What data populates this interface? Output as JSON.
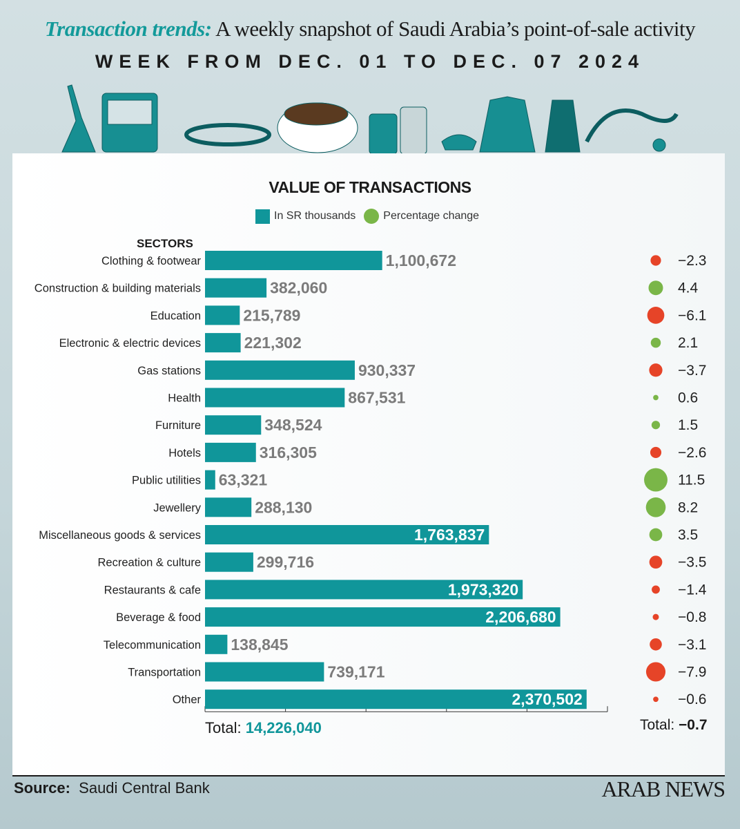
{
  "header": {
    "title_highlight": "Transaction trends:",
    "title_rest": " A weekly snapshot of Saudi Arabia’s point-of-sale activity",
    "subtitle": "WEEK FROM DEC. 01 TO DEC. 07 2024"
  },
  "colors": {
    "bar": "#10969a",
    "positive": "#7ab648",
    "negative": "#e64428"
  },
  "chart_data": {
    "type": "bar",
    "title": "VALUE OF TRANSACTIONS",
    "legend": [
      "In SR thousands",
      "Percentage change"
    ],
    "ylabel": "SECTORS",
    "xlim": [
      0,
      2500000
    ],
    "x_ticks": [
      0,
      500000,
      1000000,
      1500000,
      2000000,
      2500000
    ],
    "categories": [
      "Clothing & footwear",
      "Construction & building materials",
      "Education",
      "Electronic & electric devices",
      "Gas stations",
      "Health",
      "Furniture",
      "Hotels",
      "Public utilities",
      "Jewellery",
      "Miscellaneous goods & services",
      "Recreation & culture",
      "Restaurants & cafe",
      "Beverage & food",
      "Telecommunication",
      "Transportation",
      "Other"
    ],
    "values": [
      1100672,
      382060,
      215789,
      221302,
      930337,
      867531,
      348524,
      316305,
      63321,
      288130,
      1763837,
      299716,
      1973320,
      2206680,
      138845,
      739171,
      2370502
    ],
    "value_labels": [
      "1,100,672",
      "382,060",
      "215,789",
      "221,302",
      "930,337",
      "867,531",
      "348,524",
      "316,305",
      "63,321",
      "288,130",
      "1,763,837",
      "299,716",
      "1,973,320",
      "2,206,680",
      "138,845",
      "739,171",
      "2,370,502"
    ],
    "pct_change": [
      -2.3,
      4.4,
      -6.1,
      2.1,
      -3.7,
      0.6,
      1.5,
      -2.6,
      11.5,
      8.2,
      3.5,
      -3.5,
      -1.4,
      -0.8,
      -3.1,
      -7.9,
      -0.6
    ],
    "pct_labels": [
      "−2.3",
      "4.4",
      "−6.1",
      "2.1",
      "−3.7",
      "0.6",
      "1.5",
      "−2.6",
      "11.5",
      "8.2",
      "3.5",
      "−3.5",
      "−1.4",
      "−0.8",
      "−3.1",
      "−7.9",
      "−0.6"
    ],
    "total_label": "Total:",
    "total_value": "14,226,040",
    "total_pct_label": "Total:",
    "total_pct": "−0.7"
  },
  "footer": {
    "source_label": "Source:",
    "source": "Saudi Central Bank",
    "brand": "ARAB NEWS"
  }
}
